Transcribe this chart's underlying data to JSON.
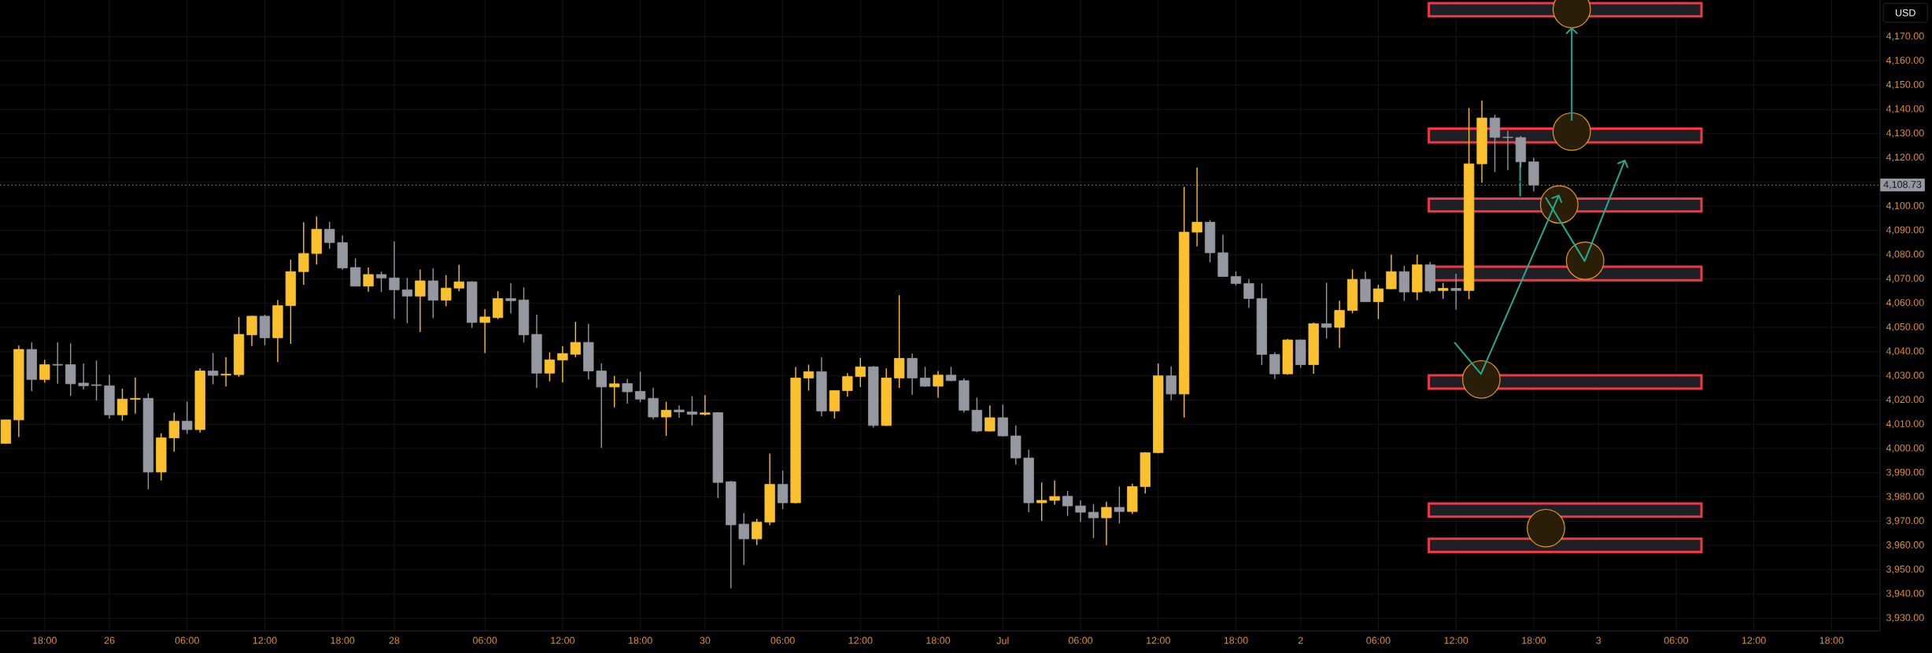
{
  "chart_data": {
    "type": "candlestick",
    "categories": [
      null,
      null,
      null,
      "18:00",
      null,
      null,
      null,
      null,
      "26",
      null,
      null,
      null,
      null,
      null,
      "06:00",
      null,
      null,
      null,
      null,
      null,
      "12:00",
      null,
      null,
      null,
      null,
      null,
      "18:00",
      null,
      null,
      null,
      "28",
      null,
      null,
      null,
      null,
      null,
      null,
      "06:00",
      null,
      null,
      null,
      null,
      null,
      "12:00",
      null,
      null,
      null,
      null,
      null,
      "18:00",
      null,
      null,
      null,
      null,
      "30",
      null,
      null,
      null,
      null,
      null,
      "06:00",
      null,
      null,
      null,
      null,
      null,
      "12:00",
      null,
      null,
      null,
      null,
      null,
      "18:00",
      null,
      null,
      null,
      null,
      "Jul",
      null,
      null,
      null,
      null,
      null,
      "06:00",
      null,
      null,
      null,
      null,
      null,
      "12:00",
      null,
      null,
      null,
      null,
      null,
      "18:00",
      null,
      null,
      null,
      null,
      "2",
      null,
      null,
      null,
      null,
      null,
      "06:00",
      null,
      null,
      null,
      null,
      null,
      "12:00",
      null,
      null,
      null,
      null,
      null,
      "18:00",
      null,
      null,
      null,
      null,
      "3",
      null,
      null,
      null,
      null,
      null,
      "06:00",
      null,
      null,
      null,
      null,
      null,
      "12:00",
      null,
      null,
      null,
      null,
      null,
      "18:00",
      null,
      null,
      null
    ],
    "ohlc": [
      [
        4002.1,
        4011.8,
        4002.1,
        4011.8
      ],
      [
        4011.8,
        4042.5,
        4004.7,
        4040.9
      ],
      [
        4040.9,
        4043.8,
        4023.7,
        4028.5
      ],
      [
        4028.5,
        4036.6,
        4027.1,
        4034.6
      ],
      [
        4034.7,
        4043.8,
        4026.7,
        4034.4
      ],
      [
        4034.6,
        4043.4,
        4021.7,
        4026.7
      ],
      [
        4027.0,
        4035.1,
        4024.4,
        4025.9
      ],
      [
        4026.3,
        4036.3,
        4019.8,
        4026.0
      ],
      [
        4025.9,
        4030.5,
        4012.4,
        4013.9
      ],
      [
        4013.9,
        4024.7,
        4011.5,
        4020.4
      ],
      [
        4020.3,
        4029.3,
        4014.4,
        4020.7
      ],
      [
        4020.7,
        4022.8,
        3983.2,
        3990.3
      ],
      [
        3990.3,
        4006.3,
        3986.8,
        4004.4
      ],
      [
        4004.4,
        4014.8,
        3998.7,
        4011.3
      ],
      [
        4011.3,
        4019.4,
        4006.0,
        4007.8
      ],
      [
        4007.8,
        4033.1,
        4006.6,
        4032.0
      ],
      [
        4032.0,
        4039.4,
        4026.5,
        4030.2
      ],
      [
        4030.3,
        4037.7,
        4025.6,
        4030.7
      ],
      [
        4030.5,
        4054.3,
        4029.6,
        4047.1
      ],
      [
        4046.9,
        4054.7,
        4042.3,
        4054.6
      ],
      [
        4054.6,
        4055.2,
        4042.6,
        4045.7
      ],
      [
        4045.7,
        4061.3,
        4035.7,
        4059.0
      ],
      [
        4059.0,
        4077.9,
        4043.2,
        4073.0
      ],
      [
        4073.0,
        4093.4,
        4067.6,
        4080.5
      ],
      [
        4080.5,
        4095.7,
        4075.9,
        4090.5
      ],
      [
        4090.5,
        4093.5,
        4082.4,
        4085.0
      ],
      [
        4085.0,
        4087.9,
        4073.8,
        4074.5
      ],
      [
        4074.7,
        4078.5,
        4067.0,
        4067.0
      ],
      [
        4067.0,
        4074.7,
        4064.7,
        4071.8
      ],
      [
        4071.8,
        4073.0,
        4064.6,
        4070.4
      ],
      [
        4070.4,
        4085.4,
        4053.5,
        4065.5
      ],
      [
        4065.5,
        4070.4,
        4051.7,
        4062.9
      ],
      [
        4062.9,
        4073.9,
        4048.1,
        4069.2
      ],
      [
        4069.2,
        4074.4,
        4053.8,
        4061.2
      ],
      [
        4061.2,
        4071.5,
        4058.7,
        4066.2
      ],
      [
        4066.2,
        4075.8,
        4064.9,
        4068.8
      ],
      [
        4068.8,
        4069.0,
        4049.8,
        4052.0
      ],
      [
        4052.0,
        4057.5,
        4039.4,
        4054.3
      ],
      [
        4054.0,
        4064.9,
        4053.4,
        4061.9
      ],
      [
        4061.9,
        4068.2,
        4055.8,
        4061.0
      ],
      [
        4061.3,
        4066.5,
        4043.8,
        4046.9
      ],
      [
        4047.1,
        4055.2,
        4025.0,
        4031.1
      ],
      [
        4031.1,
        4039.7,
        4027.7,
        4036.6
      ],
      [
        4036.5,
        4042.2,
        4027.3,
        4039.2
      ],
      [
        4038.9,
        4052.3,
        4037.7,
        4043.8
      ],
      [
        4043.8,
        4051.5,
        4028.5,
        4032.0
      ],
      [
        4032.0,
        4035.1,
        4000.3,
        4025.4
      ],
      [
        4025.4,
        4030.0,
        4017.0,
        4026.7
      ],
      [
        4026.8,
        4028.7,
        4018.5,
        4023.4
      ],
      [
        4023.6,
        4031.7,
        4019.1,
        4020.4
      ],
      [
        4020.7,
        4025.1,
        4012.1,
        4013.0
      ],
      [
        4013.0,
        4019.3,
        4005.2,
        4015.8
      ],
      [
        4015.9,
        4017.8,
        4012.7,
        4015.1
      ],
      [
        4015.1,
        4021.6,
        4009.5,
        4014.1
      ],
      [
        4014.1,
        4022.0,
        4013.6,
        4014.7
      ],
      [
        4014.8,
        4015.0,
        3979.6,
        3986.0
      ],
      [
        3986.3,
        3986.6,
        3942.3,
        3968.5
      ],
      [
        3968.8,
        3973.3,
        3951.9,
        3962.7
      ],
      [
        3962.7,
        3971.0,
        3960.2,
        3969.6
      ],
      [
        3969.6,
        3997.9,
        3968.4,
        3985.2
      ],
      [
        3985.2,
        3990.9,
        3975.0,
        3977.6
      ],
      [
        3977.6,
        4033.6,
        3977.4,
        4029.1
      ],
      [
        4029.1,
        4034.6,
        4023.9,
        4031.7
      ],
      [
        4031.7,
        4037.7,
        4013.3,
        4015.5
      ],
      [
        4015.5,
        4024.0,
        4012.4,
        4023.9
      ],
      [
        4023.9,
        4031.1,
        4021.4,
        4029.7
      ],
      [
        4029.7,
        4037.4,
        4025.4,
        4033.7
      ],
      [
        4033.7,
        4034.0,
        4008.6,
        4009.5
      ],
      [
        4009.5,
        4033.1,
        4009.3,
        4029.1
      ],
      [
        4029.1,
        4063.3,
        4025.0,
        4037.2
      ],
      [
        4037.2,
        4039.2,
        4022.2,
        4029.1
      ],
      [
        4029.1,
        4033.7,
        4025.5,
        4025.7
      ],
      [
        4025.7,
        4032.0,
        4021.0,
        4030.3
      ],
      [
        4030.3,
        4033.7,
        4027.8,
        4028.0
      ],
      [
        4028.0,
        4029.0,
        4014.8,
        4015.8
      ],
      [
        4015.8,
        4021.0,
        4006.7,
        4007.2
      ],
      [
        4007.2,
        4017.8,
        4007.0,
        4012.7
      ],
      [
        4012.7,
        4018.1,
        4005.0,
        4005.2
      ],
      [
        4005.2,
        4009.5,
        3993.4,
        3996.1
      ],
      [
        3996.1,
        3999.5,
        3973.7,
        3977.6
      ],
      [
        3977.6,
        3986.0,
        3970.1,
        3978.6
      ],
      [
        3978.6,
        3986.8,
        3976.8,
        3980.2
      ],
      [
        3980.3,
        3982.5,
        3972.2,
        3976.3
      ],
      [
        3976.3,
        3978.6,
        3969.7,
        3973.7
      ],
      [
        3973.7,
        3977.1,
        3963.0,
        3971.4
      ],
      [
        3971.4,
        3978.0,
        3960.1,
        3975.7
      ],
      [
        3975.7,
        3984.3,
        3969.1,
        3974.0
      ],
      [
        3974.0,
        3985.5,
        3973.0,
        3984.3
      ],
      [
        3984.3,
        3998.5,
        3981.4,
        3998.3
      ],
      [
        3998.3,
        4035.1,
        3998.0,
        4030.0
      ],
      [
        4030.0,
        4033.9,
        4019.9,
        4022.5
      ],
      [
        4022.5,
        4108.0,
        4012.8,
        4089.3
      ],
      [
        4089.3,
        4115.9,
        4083.4,
        4093.4
      ],
      [
        4093.4,
        4094.3,
        4076.8,
        4080.8
      ],
      [
        4080.8,
        4088.3,
        4070.7,
        4071.0
      ],
      [
        4071.0,
        4073.1,
        4067.3,
        4068.1
      ],
      [
        4068.1,
        4069.9,
        4058.1,
        4061.9
      ],
      [
        4061.9,
        4068.1,
        4034.5,
        4038.8
      ],
      [
        4038.8,
        4039.7,
        4028.7,
        4030.8
      ],
      [
        4030.8,
        4045.2,
        4030.5,
        4044.8
      ],
      [
        4044.8,
        4045.0,
        4033.3,
        4034.6
      ],
      [
        4034.6,
        4052.0,
        4030.9,
        4051.5
      ],
      [
        4051.5,
        4068.4,
        4045.4,
        4050.0
      ],
      [
        4050.0,
        4061.0,
        4041.5,
        4057.0
      ],
      [
        4057.0,
        4073.9,
        4055.8,
        4069.8
      ],
      [
        4069.8,
        4073.0,
        4060.5,
        4060.6
      ],
      [
        4060.6,
        4067.6,
        4053.4,
        4065.9
      ],
      [
        4065.9,
        4080.1,
        4065.8,
        4073.0
      ],
      [
        4073.0,
        4075.4,
        4060.9,
        4064.6
      ],
      [
        4064.6,
        4080.1,
        4061.2,
        4075.8
      ],
      [
        4075.8,
        4077.0,
        4064.2,
        4065.0
      ],
      [
        4065.2,
        4068.4,
        4061.8,
        4066.1
      ],
      [
        4066.1,
        4072.1,
        4057.3,
        4065.2
      ],
      [
        4065.2,
        4140.5,
        4061.6,
        4117.5
      ],
      [
        4117.5,
        4143.6,
        4109.7,
        4136.4
      ],
      [
        4136.4,
        4137.7,
        4114.1,
        4128.4
      ],
      [
        4128.5,
        4131.1,
        4114.9,
        4128.3
      ],
      [
        4128.3,
        4129.0,
        4116.0,
        4118.3
      ],
      [
        4118.3,
        4120.0,
        4106.1,
        4108.73
      ],
      null,
      null,
      null,
      null,
      null,
      null,
      null,
      null,
      null,
      null,
      null,
      null,
      null,
      null,
      null,
      null,
      null,
      null,
      null,
      null,
      null,
      null,
      null,
      null,
      null,
      null
    ],
    "colors": [
      "#fbc02d",
      "#fbc02d",
      "#9598a1",
      "#fbc02d",
      "#9598a1",
      "#9598a1",
      "#9598a1",
      "#9598a1",
      "#9598a1",
      "#fbc02d",
      "#fbc02d",
      "#9598a1",
      "#fbc02d",
      "#fbc02d",
      "#9598a1",
      "#fbc02d",
      "#9598a1",
      "#fbc02d",
      "#fbc02d",
      "#fbc02d",
      "#9598a1",
      "#fbc02d",
      "#fbc02d",
      "#fbc02d",
      "#fbc02d",
      "#9598a1",
      "#9598a1",
      "#9598a1",
      "#fbc02d",
      "#9598a1",
      "#9598a1",
      "#9598a1",
      "#fbc02d",
      "#9598a1",
      "#fbc02d",
      "#fbc02d",
      "#9598a1",
      "#fbc02d",
      "#fbc02d",
      "#9598a1",
      "#9598a1",
      "#9598a1",
      "#fbc02d",
      "#fbc02d",
      "#fbc02d",
      "#9598a1",
      "#9598a1",
      "#fbc02d",
      "#9598a1",
      "#9598a1",
      "#9598a1",
      "#fbc02d",
      "#9598a1",
      "#9598a1",
      "#fbc02d",
      "#9598a1",
      "#9598a1",
      "#9598a1",
      "#fbc02d",
      "#fbc02d",
      "#9598a1",
      "#fbc02d",
      "#fbc02d",
      "#9598a1",
      "#fbc02d",
      "#fbc02d",
      "#fbc02d",
      "#9598a1",
      "#fbc02d",
      "#fbc02d",
      "#9598a1",
      "#9598a1",
      "#fbc02d",
      "#9598a1",
      "#9598a1",
      "#9598a1",
      "#fbc02d",
      "#9598a1",
      "#9598a1",
      "#9598a1",
      "#fbc02d",
      "#fbc02d",
      "#9598a1",
      "#9598a1",
      "#9598a1",
      "#fbc02d",
      "#9598a1",
      "#fbc02d",
      "#fbc02d",
      "#fbc02d",
      "#9598a1",
      "#fbc02d",
      "#fbc02d",
      "#9598a1",
      "#9598a1",
      "#9598a1",
      "#9598a1",
      "#9598a1",
      "#9598a1",
      "#fbc02d",
      "#9598a1",
      "#fbc02d",
      "#9598a1",
      "#fbc02d",
      "#fbc02d",
      "#9598a1",
      "#fbc02d",
      "#fbc02d",
      "#9598a1",
      "#fbc02d",
      "#9598a1",
      "#fbc02d",
      "#9598a1",
      "#fbc02d",
      "#fbc02d",
      "#9598a1",
      "#9598a1",
      "#9598a1",
      "#9598a1",
      null,
      null,
      null,
      null,
      null,
      null,
      null,
      null,
      null,
      null,
      null,
      null,
      null,
      null,
      null,
      null,
      null,
      null,
      null,
      null,
      null,
      null,
      null,
      null,
      null,
      null
    ],
    "ylabel": "USD",
    "ylim": [
      3924.7,
      4185.1
    ],
    "yticks": [
      {
        "value": 3930,
        "label": "3,930.00"
      },
      {
        "value": 3940,
        "label": "3,940.00"
      },
      {
        "value": 3950,
        "label": "3,950.00"
      },
      {
        "value": 3960,
        "label": "3,960.00"
      },
      {
        "value": 3970,
        "label": "3,970.00"
      },
      {
        "value": 3980,
        "label": "3,980.00"
      },
      {
        "value": 3990,
        "label": "3,990.00"
      },
      {
        "value": 4000,
        "label": "4,000.00"
      },
      {
        "value": 4010,
        "label": "4,010.00"
      },
      {
        "value": 4020,
        "label": "4,020.00"
      },
      {
        "value": 4030,
        "label": "4,030.00"
      },
      {
        "value": 4040,
        "label": "4,040.00"
      },
      {
        "value": 4050,
        "label": "4,050.00"
      },
      {
        "value": 4060,
        "label": "4,060.00"
      },
      {
        "value": 4070,
        "label": "4,070.00"
      },
      {
        "value": 4080,
        "label": "4,080.00"
      },
      {
        "value": 4090,
        "label": "4,090.00"
      },
      {
        "value": 4100,
        "label": "4,100.00"
      },
      {
        "value": 4110,
        "label": null
      },
      {
        "value": 4120,
        "label": "4,120.00"
      },
      {
        "value": 4130,
        "label": "4,130.00"
      },
      {
        "value": 4140,
        "label": "4,140.00"
      },
      {
        "value": 4150,
        "label": "4,150.00"
      },
      {
        "value": 4160,
        "label": "4,160.00"
      },
      {
        "value": 4170,
        "label": "4,170.00"
      }
    ],
    "ref_lines": [
      {
        "axis": "y",
        "value": 4108.73,
        "label": "4,108.73",
        "color": "#9598a1",
        "line_style": "dotted"
      }
    ],
    "bands": [
      {
        "axis": "y",
        "from": 4178.4,
        "to": 4183.8,
        "color": "#f23645"
      },
      {
        "axis": "y",
        "from": 4126.3,
        "to": 4132.0,
        "color": "#f23645"
      },
      {
        "axis": "y",
        "from": 4097.8,
        "to": 4103.1,
        "color": "#f23645"
      },
      {
        "axis": "y",
        "from": 4069.4,
        "to": 4075.0,
        "color": "#f23645"
      },
      {
        "axis": "y",
        "from": 4024.7,
        "to": 4030.2,
        "color": "#f23645"
      },
      {
        "axis": "y",
        "from": 3971.9,
        "to": 3977.3,
        "color": "#f23645"
      },
      {
        "axis": "y",
        "from": 3957.3,
        "to": 3962.8,
        "color": "#f23645"
      }
    ],
    "grid": true
  }
}
